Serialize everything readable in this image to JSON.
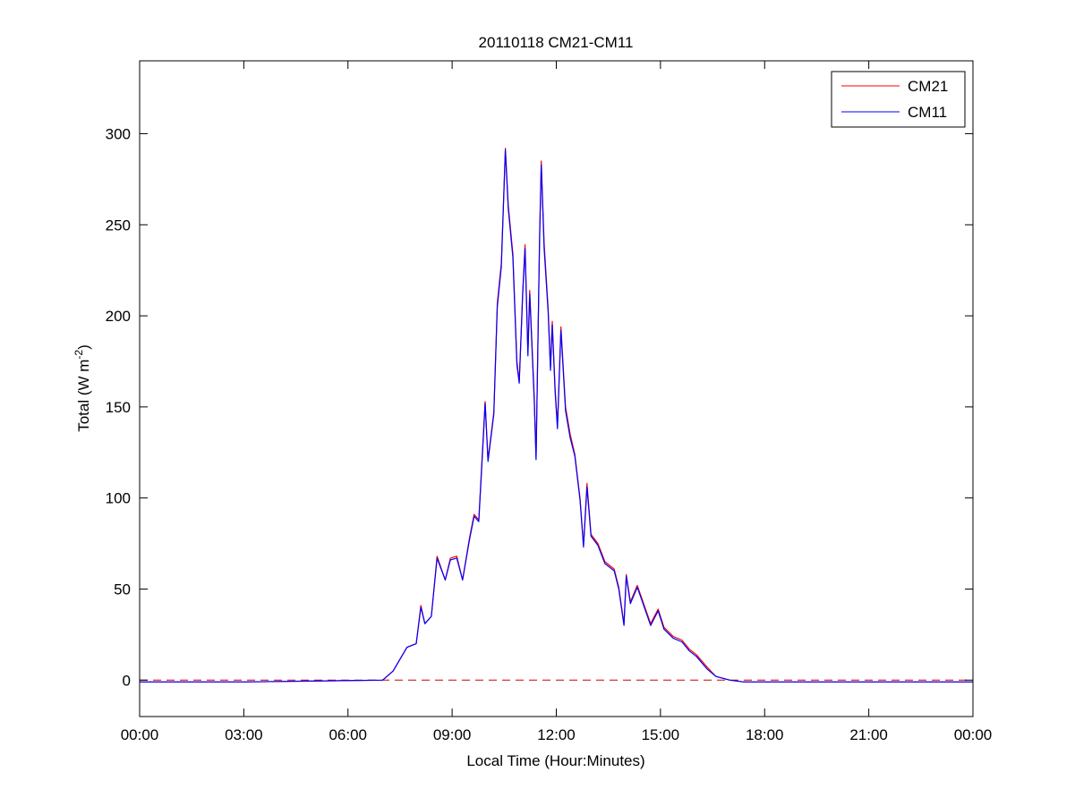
{
  "chart_data": {
    "type": "line",
    "title": "20110118 CM21-CM11",
    "xlabel": "Local Time (Hour:Minutes)",
    "ylabel": "Total (W m",
    "ylabel_sup": "-2",
    "ylabel_close": ")",
    "xlim": [
      "00:00",
      "24:00"
    ],
    "ylim": [
      -20,
      340
    ],
    "x_ticks": [
      "00:00",
      "03:00",
      "06:00",
      "09:00",
      "12:00",
      "15:00",
      "18:00",
      "21:00",
      "00:00"
    ],
    "y_ticks": [
      0,
      50,
      100,
      150,
      200,
      250,
      300
    ],
    "grid": false,
    "legend_position": "top-right",
    "reference_line": {
      "y": 0,
      "style": "dashed",
      "color": "#cc0000"
    },
    "x": [
      "00:00",
      "03:00",
      "07:00",
      "07:18",
      "07:42",
      "07:58",
      "08:06",
      "08:13",
      "08:24",
      "08:34",
      "08:48",
      "08:57",
      "09:08",
      "09:18",
      "09:30",
      "09:38",
      "09:46",
      "09:54",
      "09:57",
      "10:02",
      "10:12",
      "10:18",
      "10:25",
      "10:32",
      "10:37",
      "10:45",
      "10:52",
      "10:56",
      "11:02",
      "11:06",
      "11:11",
      "11:14",
      "11:22",
      "11:25",
      "11:31",
      "11:34",
      "11:39",
      "11:46",
      "11:50",
      "11:53",
      "11:58",
      "12:02",
      "12:08",
      "12:16",
      "12:24",
      "12:32",
      "12:41",
      "12:47",
      "12:53",
      "13:00",
      "13:12",
      "13:24",
      "13:40",
      "13:48",
      "13:57",
      "14:01",
      "14:08",
      "14:20",
      "14:32",
      "14:43",
      "14:56",
      "15:06",
      "15:22",
      "15:37",
      "15:50",
      "16:02",
      "16:21",
      "16:36",
      "17:00",
      "17:24",
      "24:00"
    ],
    "series": [
      {
        "name": "CM21",
        "color": "#ff0000",
        "values": [
          -1,
          -1,
          0,
          5,
          18,
          20,
          41,
          31,
          35,
          68,
          55,
          67,
          68,
          55,
          78,
          91,
          88,
          135,
          153,
          121,
          147,
          207,
          229,
          292,
          261,
          234,
          175,
          164,
          214,
          239,
          180,
          214,
          155,
          122,
          243,
          285,
          240,
          204,
          172,
          197,
          160,
          140,
          194,
          150,
          135,
          124,
          100,
          74,
          108,
          80,
          75,
          65,
          61,
          51,
          31,
          58,
          43,
          52,
          41,
          31,
          39,
          29,
          24,
          22,
          17,
          14,
          7,
          2,
          0,
          -1,
          -1
        ]
      },
      {
        "name": "CM11",
        "color": "#0000ff",
        "values": [
          -1,
          -1,
          0,
          5,
          18,
          20,
          40,
          31,
          35,
          67,
          55,
          66,
          67,
          55,
          77,
          90,
          87,
          133,
          152,
          120,
          146,
          205,
          227,
          291,
          259,
          232,
          173,
          163,
          212,
          237,
          178,
          212,
          153,
          121,
          241,
          283,
          237,
          202,
          170,
          195,
          158,
          138,
          192,
          148,
          133,
          123,
          99,
          73,
          106,
          79,
          74,
          64,
          60,
          50,
          30,
          57,
          42,
          51,
          40,
          30,
          38,
          28,
          23,
          21,
          16,
          13,
          6,
          2,
          0,
          -1,
          -1
        ]
      }
    ]
  }
}
